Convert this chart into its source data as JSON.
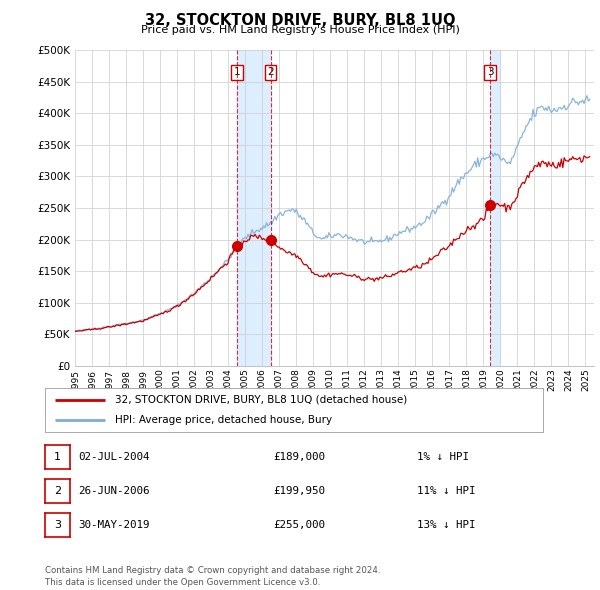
{
  "title": "32, STOCKTON DRIVE, BURY, BL8 1UQ",
  "subtitle": "Price paid vs. HM Land Registry's House Price Index (HPI)",
  "ylabel_ticks": [
    "£0",
    "£50K",
    "£100K",
    "£150K",
    "£200K",
    "£250K",
    "£300K",
    "£350K",
    "£400K",
    "£450K",
    "£500K"
  ],
  "ytick_values": [
    0,
    50000,
    100000,
    150000,
    200000,
    250000,
    300000,
    350000,
    400000,
    450000,
    500000
  ],
  "ylim": [
    0,
    500000
  ],
  "xlim_start": 1995.0,
  "xlim_end": 2025.5,
  "hpi_color": "#7dadd4",
  "price_color": "#cc0000",
  "vline_color": "#cc0000",
  "shade_color": "#ddeeff",
  "transaction_dates": [
    2004.5,
    2006.49,
    2019.41
  ],
  "transaction_prices": [
    189000,
    199950,
    255000
  ],
  "transaction_labels": [
    "1",
    "2",
    "3"
  ],
  "legend_line1": "32, STOCKTON DRIVE, BURY, BL8 1UQ (detached house)",
  "legend_line2": "HPI: Average price, detached house, Bury",
  "table_data": [
    [
      "1",
      "02-JUL-2004",
      "£189,000",
      "1% ↓ HPI"
    ],
    [
      "2",
      "26-JUN-2006",
      "£199,950",
      "11% ↓ HPI"
    ],
    [
      "3",
      "30-MAY-2019",
      "£255,000",
      "13% ↓ HPI"
    ]
  ],
  "footer": "Contains HM Land Registry data © Crown copyright and database right 2024.\nThis data is licensed under the Open Government Licence v3.0.",
  "background_color": "#ffffff",
  "plot_bg_color": "#ffffff",
  "grid_color": "#cccccc",
  "xtick_years": [
    1995,
    1996,
    1997,
    1998,
    1999,
    2000,
    2001,
    2002,
    2003,
    2004,
    2005,
    2006,
    2007,
    2008,
    2009,
    2010,
    2011,
    2012,
    2013,
    2014,
    2015,
    2016,
    2017,
    2018,
    2019,
    2020,
    2021,
    2022,
    2023,
    2024,
    2025
  ]
}
